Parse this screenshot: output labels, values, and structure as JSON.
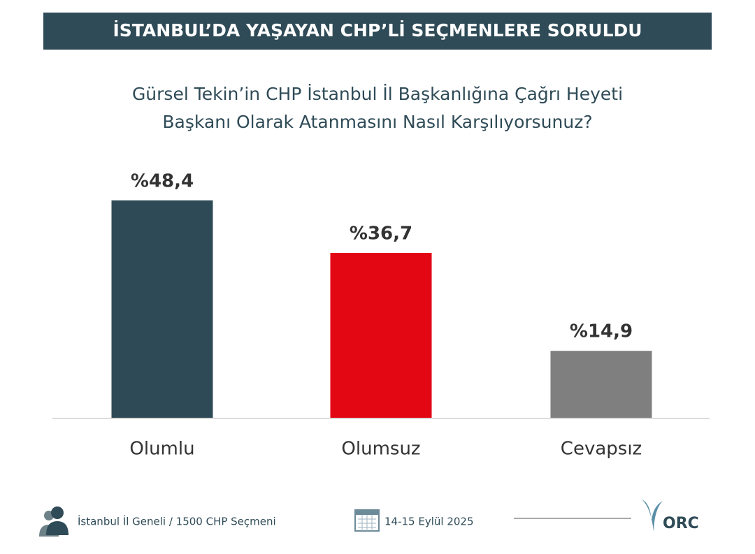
{
  "chart_data": {
    "type": "bar",
    "title": "İSTANBUL’DA YAŞAYAN CHP’Lİ SEÇMENLERE SORULDU",
    "subtitle": [
      "Gürsel Tekin’in CHP İstanbul İl Başkanlığına Çağrı Heyeti",
      "Başkanı Olarak Atanmasını Nasıl Karşılıyorsunuz?"
    ],
    "categories": [
      "Olumlu",
      "Olumsuz",
      "Cevapsız"
    ],
    "values": [
      48.4,
      36.7,
      14.9
    ],
    "value_labels": [
      "%48,4",
      "%36,7",
      "%14,9"
    ],
    "colors": [
      "#2e4a57",
      "#e30613",
      "#7f7f7f"
    ]
  },
  "footer": {
    "sample": "İstanbul İl Geneli / 1500 CHP Seçmeni",
    "date": "14-15 Eylül 2025",
    "logo": "ORC"
  }
}
